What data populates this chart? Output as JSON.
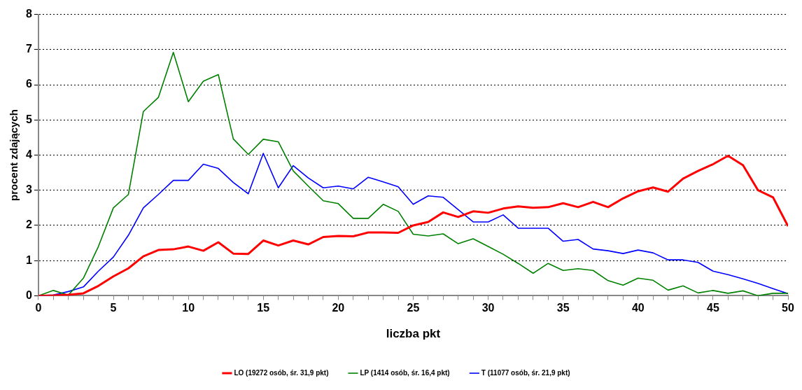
{
  "chart_data": {
    "type": "line",
    "xlabel": "liczba pkt",
    "ylabel": "procent zdających",
    "x": [
      0,
      1,
      2,
      3,
      4,
      5,
      6,
      7,
      8,
      9,
      10,
      11,
      12,
      13,
      14,
      15,
      16,
      17,
      18,
      19,
      20,
      21,
      22,
      23,
      24,
      25,
      26,
      27,
      28,
      29,
      30,
      31,
      32,
      33,
      34,
      35,
      36,
      37,
      38,
      39,
      40,
      41,
      42,
      43,
      44,
      45,
      46,
      47,
      48,
      49,
      50
    ],
    "series": [
      {
        "name": "LO (19272 osób, śr. 31,9 pkt)",
        "color": "#ff0000",
        "values": [
          0,
          0.01,
          0.03,
          0.07,
          0.28,
          0.55,
          0.78,
          1.12,
          1.3,
          1.32,
          1.4,
          1.28,
          1.52,
          1.2,
          1.19,
          1.57,
          1.43,
          1.57,
          1.46,
          1.67,
          1.7,
          1.69,
          1.8,
          1.8,
          1.79,
          2.0,
          2.1,
          2.37,
          2.24,
          2.4,
          2.36,
          2.48,
          2.54,
          2.5,
          2.52,
          2.63,
          2.52,
          2.67,
          2.52,
          2.77,
          2.97,
          3.08,
          2.96,
          3.33,
          3.55,
          3.74,
          3.98,
          3.71,
          3.0,
          2.8,
          1.98
        ]
      },
      {
        "name": "LP (1414 osób, śr. 16,4 pkt)",
        "color": "#008000",
        "values": [
          0,
          0.15,
          0.02,
          0.5,
          1.4,
          2.5,
          2.88,
          5.24,
          5.64,
          6.92,
          5.52,
          6.1,
          6.29,
          4.46,
          4.02,
          4.45,
          4.38,
          3.55,
          3.12,
          2.7,
          2.62,
          2.2,
          2.2,
          2.6,
          2.4,
          1.75,
          1.7,
          1.76,
          1.48,
          1.62,
          1.4,
          1.18,
          0.92,
          0.64,
          0.92,
          0.72,
          0.77,
          0.72,
          0.43,
          0.3,
          0.5,
          0.44,
          0.16,
          0.28,
          0.08,
          0.15,
          0.07,
          0.14,
          0.0,
          0.07,
          0.07
        ]
      },
      {
        "name": "T (11077 osób, śr. 21,9 pkt)",
        "color": "#0000ff",
        "values": [
          0,
          0.02,
          0.12,
          0.25,
          0.7,
          1.1,
          1.72,
          2.5,
          2.88,
          3.28,
          3.28,
          3.74,
          3.62,
          3.22,
          2.9,
          4.05,
          3.07,
          3.7,
          3.35,
          3.07,
          3.12,
          3.04,
          3.37,
          3.24,
          3.1,
          2.6,
          2.84,
          2.8,
          2.45,
          2.1,
          2.1,
          2.3,
          1.92,
          1.92,
          1.92,
          1.55,
          1.6,
          1.33,
          1.28,
          1.2,
          1.3,
          1.22,
          1.02,
          1.02,
          0.95,
          0.7,
          0.6,
          0.48,
          0.35,
          0.2,
          0.06
        ]
      }
    ],
    "xlim": [
      0,
      50
    ],
    "xticks": [
      0,
      {
        "value": 1,
        "label": null
      },
      {
        "value": 2,
        "label": null
      },
      {
        "value": 3,
        "label": null
      },
      {
        "value": 4,
        "label": null
      },
      5,
      {
        "value": 6,
        "label": null
      },
      {
        "value": 7,
        "label": null
      },
      {
        "value": 8,
        "label": null
      },
      {
        "value": 9,
        "label": null
      },
      10,
      {
        "value": 11,
        "label": null
      },
      {
        "value": 12,
        "label": null
      },
      {
        "value": 13,
        "label": null
      },
      {
        "value": 14,
        "label": null
      },
      15,
      {
        "value": 16,
        "label": null
      },
      {
        "value": 17,
        "label": null
      },
      {
        "value": 18,
        "label": null
      },
      {
        "value": 19,
        "label": null
      },
      20,
      {
        "value": 21,
        "label": null
      },
      {
        "value": 22,
        "label": null
      },
      {
        "value": 23,
        "label": null
      },
      {
        "value": 24,
        "label": null
      },
      25,
      {
        "value": 26,
        "label": null
      },
      {
        "value": 27,
        "label": null
      },
      {
        "value": 28,
        "label": null
      },
      {
        "value": 29,
        "label": null
      },
      30,
      {
        "value": 31,
        "label": null
      },
      {
        "value": 32,
        "label": null
      },
      {
        "value": 33,
        "label": null
      },
      {
        "value": 34,
        "label": null
      },
      35,
      {
        "value": 36,
        "label": null
      },
      {
        "value": 37,
        "label": null
      },
      {
        "value": 38,
        "label": null
      },
      {
        "value": 39,
        "label": null
      },
      40,
      {
        "value": 41,
        "label": null
      },
      {
        "value": 42,
        "label": null
      },
      {
        "value": 43,
        "label": null
      },
      {
        "value": 44,
        "label": null
      },
      45,
      {
        "value": 46,
        "label": null
      },
      {
        "value": 47,
        "label": null
      },
      {
        "value": 48,
        "label": null
      },
      {
        "value": 49,
        "label": null
      },
      50
    ],
    "ylim": [
      0,
      8
    ],
    "yticks": [
      0,
      1,
      2,
      3,
      4,
      5,
      6,
      7,
      8
    ],
    "grid": "y",
    "legend": "bottom",
    "marker": "none",
    "line_style": "solid"
  }
}
